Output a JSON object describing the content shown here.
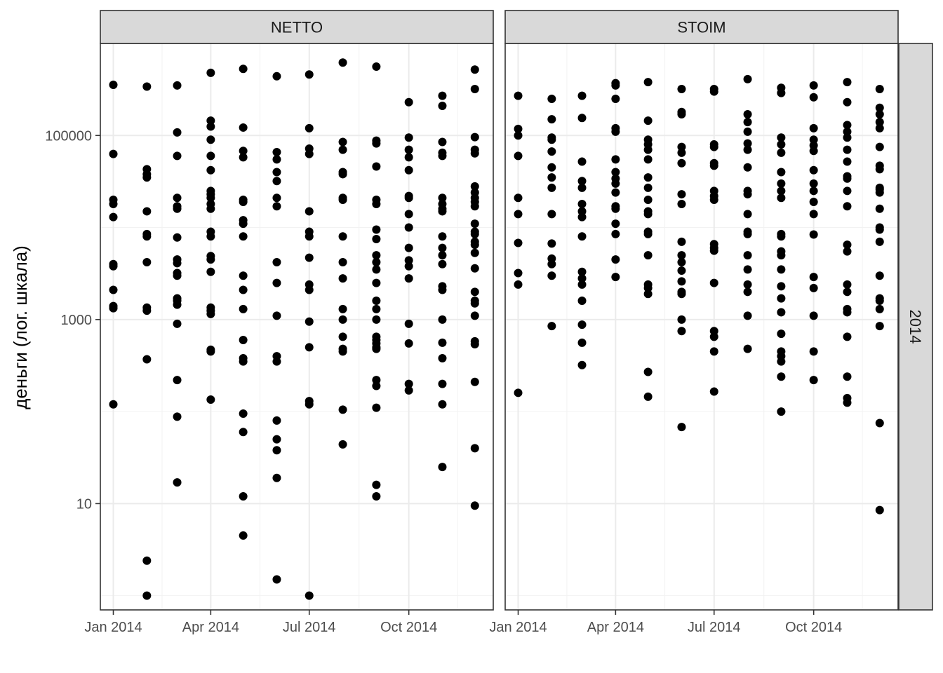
{
  "chart_data": {
    "type": "scatter",
    "title": "",
    "ylabel": "деньги (лог. шкала)",
    "xlabel": "",
    "y_scale": "log10",
    "ylim": [
      0.7,
      1000000
    ],
    "xlim": [
      "2013-12-20",
      "2014-12-18"
    ],
    "grid": true,
    "legend": "none",
    "point_color": "#000000",
    "row_facet": "2014",
    "x_ticks": [
      {
        "date": "2014-01-01",
        "label": "Jan 2014"
      },
      {
        "date": "2014-04-01",
        "label": "Apr 2014"
      },
      {
        "date": "2014-07-01",
        "label": "Jul 2014"
      },
      {
        "date": "2014-10-01",
        "label": "Oct 2014"
      }
    ],
    "y_ticks": [
      {
        "value": 10,
        "label": "10"
      },
      {
        "value": 1000,
        "label": "1000"
      },
      {
        "value": 100000,
        "label": "100000"
      }
    ],
    "panels": [
      {
        "name": "NETTO",
        "points": [
          {
            "x": "2014-01-01",
            "y": [
              355000,
              63000,
              20000,
              18000,
              13000,
              4000,
              3800,
              2100,
              1400,
              1330,
              120
            ]
          },
          {
            "x": "2014-02-01",
            "y": [
              340000,
              43000,
              38000,
              35000,
              15000,
              8500,
              8000,
              4200,
              1350,
              1250,
              370,
              2.4,
              1.0
            ]
          },
          {
            "x": "2014-03-01",
            "y": [
              350000,
              108000,
              60000,
              21000,
              17000,
              16000,
              7800,
              4500,
              4100,
              3200,
              3000,
              1700,
              1600,
              1450,
              900,
              220,
              88,
              17
            ]
          },
          {
            "x": "2014-04-01",
            "y": [
              480000,
              145000,
              125000,
              90000,
              60000,
              42000,
              25000,
              23000,
              21000,
              18000,
              16000,
              9000,
              8000,
              4900,
              4500,
              3300,
              1350,
              1250,
              1150,
              470,
              450,
              135
            ]
          },
          {
            "x": "2014-05-01",
            "y": [
              530000,
              122000,
              68000,
              58000,
              20000,
              19000,
              12000,
              11000,
              8000,
              3000,
              2100,
              1300,
              600,
              380,
              350,
              95,
              60,
              12,
              4.5
            ]
          },
          {
            "x": "2014-06-01",
            "y": [
              440000,
              66000,
              55000,
              40000,
              32000,
              21000,
              17000,
              4200,
              2500,
              1100,
              400,
              350,
              80,
              50,
              38,
              19,
              1.5
            ]
          },
          {
            "x": "2014-07-01",
            "y": [
              460000,
              120000,
              72000,
              63000,
              15000,
              9000,
              8000,
              4700,
              2400,
              2100,
              950,
              500,
              130,
              120,
              1.0
            ]
          },
          {
            "x": "2014-08-01",
            "y": [
              620000,
              85000,
              70000,
              40000,
              38000,
              21000,
              20000,
              8000,
              4200,
              2800,
              1300,
              1000,
              650,
              480,
              450,
              105,
              44
            ]
          },
          {
            "x": "2014-09-01",
            "y": [
              560000,
              88000,
              82000,
              46000,
              20000,
              18000,
              9500,
              7500,
              5000,
              4200,
              3500,
              2500,
              1600,
              1300,
              1000,
              650,
              600,
              550,
              500,
              480,
              220,
              190,
              110,
              16,
              12
            ]
          },
          {
            "x": "2014-10-01",
            "y": [
              230000,
              95000,
              70000,
              58000,
              42000,
              22000,
              21000,
              14000,
              10000,
              6000,
              4400,
              3800,
              2800,
              900,
              550,
              200,
              170
            ]
          },
          {
            "x": "2014-11-01",
            "y": [
              270000,
              210000,
              85000,
              65000,
              60000,
              21000,
              18000,
              16000,
              15000,
              8000,
              6000,
              5000,
              4000,
              2300,
              2100,
              1000,
              560,
              380,
              200,
              120,
              25
            ]
          },
          {
            "x": "2014-12-01",
            "y": [
              520000,
              320000,
              96000,
              70000,
              64000,
              28000,
              24000,
              21000,
              19000,
              17000,
              11000,
              9000,
              8500,
              7000,
              6500,
              5300,
              3600,
              2000,
              1600,
              1500,
              1100,
              580,
              540,
              210,
              40,
              9.5
            ]
          }
        ]
      },
      {
        "name": "STOIM",
        "points": [
          {
            "x": "2014-01-01",
            "y": [
              270000,
              118000,
              100000,
              60000,
              21000,
              14000,
              6800,
              3200,
              2400,
              160
            ]
          },
          {
            "x": "2014-02-01",
            "y": [
              250000,
              150000,
              95000,
              90000,
              67000,
              45000,
              35000,
              27000,
              14000,
              6700,
              4600,
              4000,
              3000,
              850
            ]
          },
          {
            "x": "2014-03-01",
            "y": [
              270000,
              155000,
              52000,
              32000,
              27000,
              18000,
              15000,
              13000,
              8000,
              3300,
              2800,
              2400,
              1600,
              880,
              560,
              320
            ]
          },
          {
            "x": "2014-04-01",
            "y": [
              370000,
              350000,
              250000,
              120000,
              110000,
              55000,
              40000,
              34000,
              30000,
              24000,
              17000,
              16000,
              11000,
              8500,
              4500,
              2900
            ]
          },
          {
            "x": "2014-05-01",
            "y": [
              380000,
              145000,
              90000,
              80000,
              70000,
              55000,
              35000,
              27000,
              20000,
              15000,
              14000,
              9000,
              8500,
              5000,
              2400,
              2200,
              1900,
              270,
              145
            ]
          },
          {
            "x": "2014-06-01",
            "y": [
              320000,
              180000,
              170000,
              75000,
              65000,
              50000,
              23000,
              18000,
              7000,
              5000,
              4200,
              3400,
              2600,
              2000,
              1900,
              1000,
              750,
              68
            ]
          },
          {
            "x": "2014-07-01",
            "y": [
              320000,
              300000,
              80000,
              75000,
              50000,
              47000,
              25000,
              22000,
              20000,
              6600,
              6000,
              5600,
              2500,
              750,
              650,
              450,
              165
            ]
          },
          {
            "x": "2014-08-01",
            "y": [
              410000,
              170000,
              140000,
              110000,
              82000,
              70000,
              45000,
              25000,
              23000,
              14000,
              9000,
              8500,
              5000,
              3500,
              2400,
              2000,
              1100,
              480
            ]
          },
          {
            "x": "2014-09-01",
            "y": [
              330000,
              290000,
              95000,
              80000,
              65000,
              40000,
              30000,
              25000,
              21000,
              8500,
              8000,
              5500,
              5000,
              3500,
              2300,
              1700,
              1200,
              700,
              450,
              400,
              350,
              240,
              100
            ]
          },
          {
            "x": "2014-10-01",
            "y": [
              350000,
              260000,
              120000,
              90000,
              78000,
              68000,
              42000,
              30000,
              25000,
              19000,
              14000,
              8400,
              2900,
              2200,
              1100,
              450,
              220
            ]
          },
          {
            "x": "2014-11-01",
            "y": [
              380000,
              230000,
              130000,
              110000,
              95000,
              70000,
              52000,
              36000,
              34000,
              25000,
              17000,
              6500,
              5500,
              2400,
              2000,
              1300,
              1200,
              650,
              240,
              140,
              125
            ]
          },
          {
            "x": "2014-12-01",
            "y": [
              320000,
              200000,
              170000,
              140000,
              120000,
              75000,
              47000,
              43000,
              27000,
              26000,
              24000,
              16000,
              10000,
              9500,
              7000,
              3000,
              1700,
              1600,
              1300,
              850,
              75,
              8.5
            ]
          }
        ]
      }
    ]
  }
}
